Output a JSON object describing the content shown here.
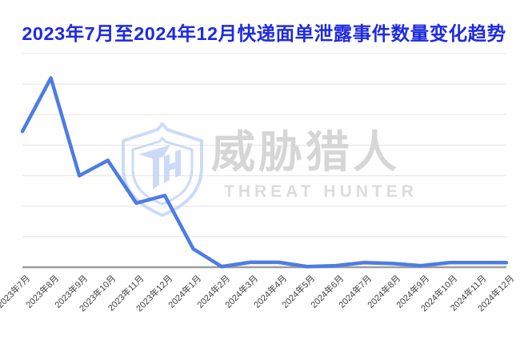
{
  "page": {
    "background": "#ffffff"
  },
  "title": {
    "text": "2023年7月至2024年12月快递面单泄露事件数量变化趋势",
    "color": "#1e2be0"
  },
  "watermark": {
    "logo_icon": "shield-th-logo",
    "brand_cjk": "威胁猎人",
    "brand_en": "THREAT HUNTER",
    "logo_color": "#c2d5f6",
    "cjk_color": "#d6d6d6",
    "en_color": "#dcdcdc"
  },
  "chart_data": {
    "type": "line",
    "title": "2023年7月至2024年12月快递面单泄露事件数量变化趋势",
    "categories": [
      "2023年7月",
      "2023年8月",
      "2023年9月",
      "2023年10月",
      "2023年11月",
      "2023年12月",
      "2024年1月",
      "2024年2月",
      "2024年3月",
      "2024年4月",
      "2024年5月",
      "2024年6月",
      "2024年7月",
      "2024年8月",
      "2024年9月",
      "2024年10月",
      "2024年11月",
      "2024年12月"
    ],
    "values": [
      4.45,
      6.2,
      3.0,
      3.5,
      2.1,
      2.35,
      0.6,
      0.02,
      0.16,
      0.16,
      0.02,
      0.05,
      0.15,
      0.12,
      0.05,
      0.15,
      0.15,
      0.15
    ],
    "xlabel": "",
    "ylabel": "",
    "ylim": [
      0,
      7
    ],
    "y_tick_labels": [],
    "grid": "horizontal",
    "legend": "none",
    "line_color": "#4d7ce4",
    "grid_color": "#e9e9e9",
    "axis_color": "#9e9e9e",
    "tick_label_color": "#414141"
  }
}
